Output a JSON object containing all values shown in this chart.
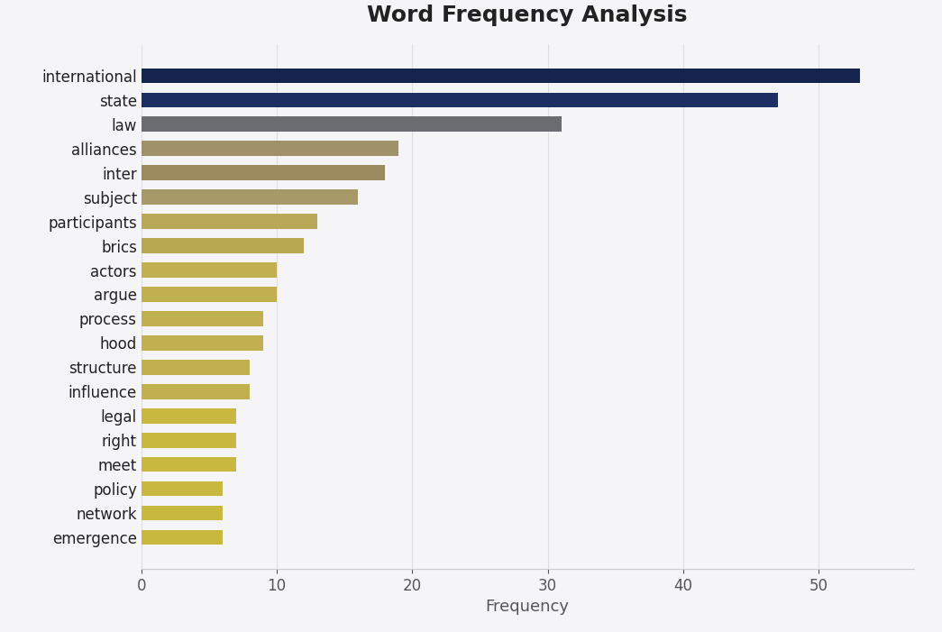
{
  "title": "Word Frequency Analysis",
  "xlabel": "Frequency",
  "words": [
    "international",
    "state",
    "law",
    "alliances",
    "inter",
    "subject",
    "participants",
    "brics",
    "actors",
    "argue",
    "process",
    "hood",
    "structure",
    "influence",
    "legal",
    "right",
    "meet",
    "policy",
    "network",
    "emergence"
  ],
  "values": [
    53,
    47,
    31,
    19,
    18,
    16,
    13,
    12,
    10,
    10,
    9,
    9,
    8,
    8,
    7,
    7,
    7,
    6,
    6,
    6
  ],
  "colors": [
    "#152550",
    "#1b2f63",
    "#6b6b72",
    "#a09268",
    "#9a8a5e",
    "#a89a68",
    "#b8a858",
    "#b8a850",
    "#c0b050",
    "#c0b050",
    "#c0b050",
    "#c0b050",
    "#c0b050",
    "#c0b050",
    "#c8b840",
    "#c8b840",
    "#c8b840",
    "#c8b840",
    "#c8b840",
    "#c8b840"
  ],
  "background_color": "#f5f5f8",
  "plot_bg_color": "#f5f5f8",
  "title_fontsize": 18,
  "xlabel_fontsize": 13,
  "tick_fontsize": 12,
  "xlim": [
    0,
    57
  ],
  "xticks": [
    0,
    10,
    20,
    30,
    40,
    50
  ],
  "bar_height": 0.6,
  "grid_color": "#e0e0e0",
  "spine_color": "#cccccc",
  "tick_color": "#555555"
}
